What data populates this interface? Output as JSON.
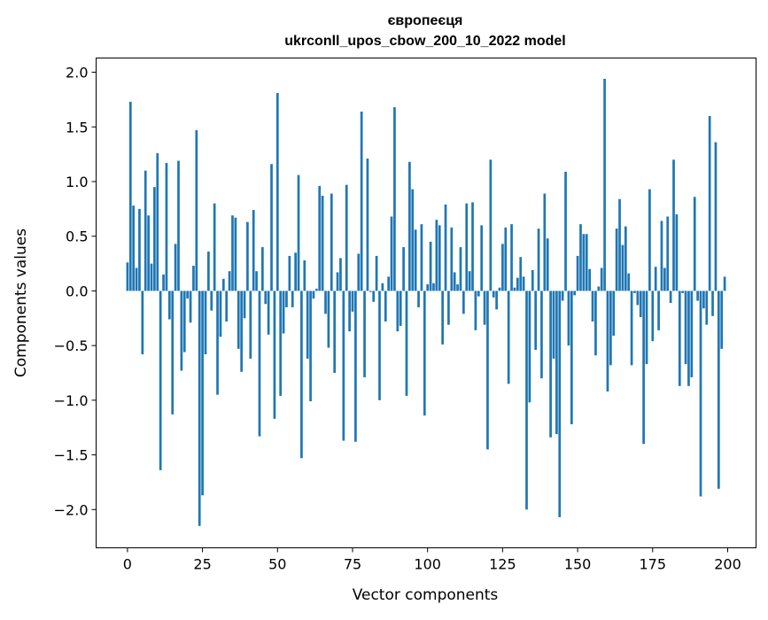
{
  "chart_data": {
    "type": "bar",
    "title_line1": "європеєця",
    "title_line2": "ukrconll_upos_cbow_200_10_2022 model",
    "xlabel": "Vector components",
    "ylabel": "Components values",
    "xlim": [
      -10.45,
      209.45
    ],
    "ylim": [
      -2.35,
      2.13
    ],
    "xticks": [
      0,
      25,
      50,
      75,
      100,
      125,
      150,
      175,
      200
    ],
    "xtick_labels": [
      "0",
      "25",
      "50",
      "75",
      "100",
      "125",
      "150",
      "175",
      "200"
    ],
    "yticks": [
      -2.0,
      -1.5,
      -1.0,
      -0.5,
      0.0,
      0.5,
      1.0,
      1.5,
      2.0
    ],
    "ytick_labels": [
      "−2.0",
      "−1.5",
      "−1.0",
      "−0.5",
      "0.0",
      "0.5",
      "1.0",
      "1.5",
      "2.0"
    ],
    "grid": false,
    "bar_color": "#1f77b4",
    "values": [
      0.26,
      1.73,
      0.78,
      0.21,
      0.75,
      -0.58,
      1.1,
      0.69,
      0.25,
      0.95,
      1.26,
      -1.64,
      0.15,
      1.17,
      -0.26,
      -1.13,
      0.43,
      1.19,
      -0.73,
      -0.56,
      -0.07,
      -0.29,
      0.23,
      1.47,
      -2.15,
      -1.87,
      -0.58,
      0.36,
      -0.18,
      0.8,
      -0.95,
      -0.42,
      0.11,
      -0.28,
      0.18,
      0.69,
      0.67,
      -0.53,
      -0.74,
      -0.25,
      0.63,
      -0.62,
      0.74,
      0.18,
      -1.33,
      0.4,
      -0.12,
      -0.4,
      1.16,
      -1.17,
      1.81,
      -0.96,
      -0.39,
      -0.15,
      0.32,
      -0.15,
      0.35,
      1.06,
      -1.53,
      0.28,
      -0.62,
      -1.01,
      -0.07,
      0.02,
      0.96,
      0.87,
      -0.21,
      -0.52,
      0.89,
      -0.75,
      0.17,
      0.3,
      -1.37,
      0.97,
      -0.37,
      -0.19,
      -1.38,
      0.34,
      1.64,
      -0.79,
      1.21,
      -0.01,
      -0.1,
      0.32,
      -1.0,
      0.07,
      -0.28,
      0.13,
      0.68,
      1.68,
      -0.37,
      -0.32,
      0.4,
      -0.96,
      1.18,
      0.93,
      0.56,
      -0.15,
      0.61,
      -1.14,
      0.06,
      0.45,
      0.07,
      0.65,
      0.6,
      -0.49,
      0.79,
      -0.31,
      0.58,
      0.17,
      0.06,
      0.4,
      -0.21,
      0.8,
      0.18,
      0.81,
      -0.36,
      -0.05,
      0.6,
      -0.31,
      -1.45,
      1.2,
      -0.06,
      -0.17,
      0.03,
      0.43,
      0.58,
      -0.85,
      0.61,
      0.03,
      0.12,
      0.31,
      0.13,
      -2.0,
      -1.02,
      0.19,
      -0.54,
      0.57,
      -0.8,
      0.89,
      0.48,
      -1.34,
      -0.62,
      -1.31,
      -2.07,
      -0.09,
      1.09,
      -0.5,
      -1.22,
      -0.04,
      0.32,
      0.61,
      0.52,
      0.52,
      0.2,
      -0.28,
      -0.59,
      0.04,
      0.21,
      1.94,
      -0.92,
      -0.68,
      -0.41,
      0.57,
      0.84,
      0.42,
      0.59,
      0.16,
      -0.68,
      -0.02,
      -0.13,
      -0.24,
      -1.4,
      -0.67,
      0.93,
      -0.46,
      0.22,
      -0.36,
      0.64,
      0.21,
      0.68,
      -0.11,
      1.2,
      0.7,
      -0.87,
      -0.02,
      -0.67,
      -0.87,
      -0.79,
      0.86,
      -0.09,
      -1.88,
      -0.16,
      -0.31,
      1.6,
      -0.23,
      1.36,
      -1.81,
      -0.53,
      0.13
    ]
  }
}
